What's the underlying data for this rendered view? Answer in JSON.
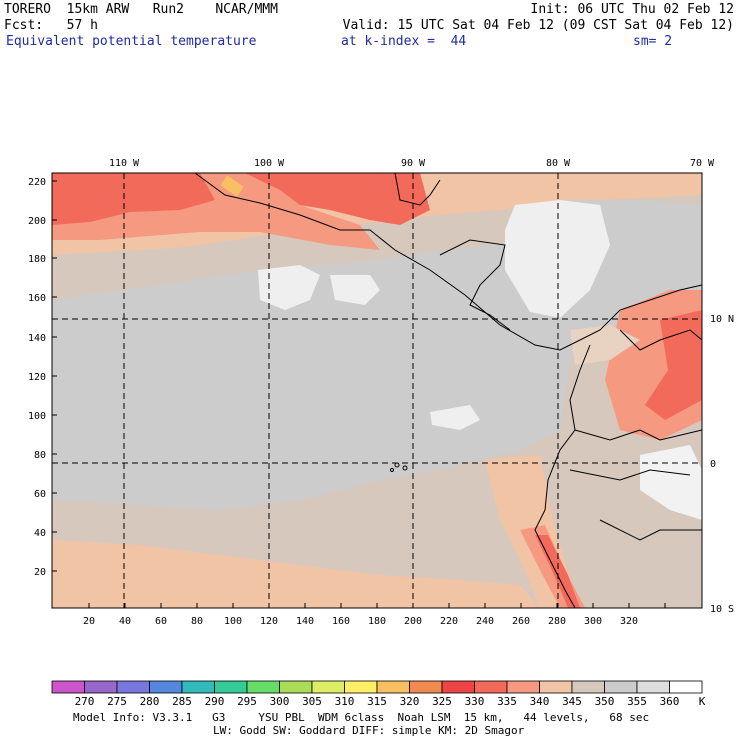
{
  "header": {
    "line1_left": "TORERO  15km ARW   Run2    NCAR/MMM",
    "line1_right": "Init: 06 UTC Thu 02 Feb 12",
    "line2_left": "Fcst:   57 h",
    "line2_right": "Valid: 15 UTC Sat 04 Feb 12 (09 CST Sat 04 Feb 12)",
    "field": "Equivalent potential temperature",
    "level": "at k-index =  44",
    "smoothing": "sm= 2"
  },
  "map": {
    "top_lon_labels": [
      "110 W",
      "100 W",
      "90 W",
      "80 W",
      "70 W"
    ],
    "right_lat_labels": [
      "10 N",
      "0",
      "10 S"
    ],
    "left_grid_labels": [
      "220",
      "200",
      "180",
      "160",
      "140",
      "120",
      "100",
      "80",
      "60",
      "40",
      "20"
    ],
    "bottom_grid_labels": [
      "20",
      "40",
      "60",
      "80",
      "100",
      "120",
      "140",
      "160",
      "180",
      "200",
      "220",
      "240",
      "260",
      "280",
      "300",
      "320"
    ]
  },
  "colorbar": {
    "colors": [
      "#cc55cc",
      "#9966cc",
      "#7777dd",
      "#5588dd",
      "#33bbbb",
      "#33cc99",
      "#66dd66",
      "#aadd55",
      "#ddee66",
      "#ffee66",
      "#f8c060",
      "#f08a50",
      "#ee4444",
      "#f26a5a",
      "#f59a80",
      "#f2c4a6",
      "#d6c8bd",
      "#cccccc",
      "#dddddd",
      "#ffffff"
    ],
    "labels": [
      "270",
      "275",
      "280",
      "285",
      "290",
      "295",
      "300",
      "305",
      "310",
      "315",
      "320",
      "325",
      "330",
      "335",
      "340",
      "345",
      "350",
      "355",
      "360",
      "K"
    ]
  },
  "footer": {
    "line1": "Model Info: V3.3.1   G3     YSU PBL  WDM 6class  Noah LSM  15 km,   44 levels,   68 sec",
    "line2": "LW: Godd SW: Goddard DIFF: simple KM: 2D Smagor"
  }
}
